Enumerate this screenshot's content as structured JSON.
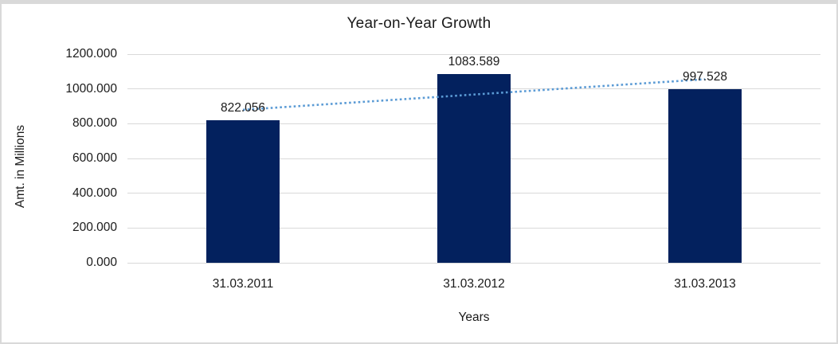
{
  "chart_data": {
    "type": "bar",
    "title": "Year-on-Year Growth",
    "xlabel": "Years",
    "ylabel": "Amt. in Millions",
    "categories": [
      "31.03.2011",
      "31.03.2012",
      "31.03.2013"
    ],
    "values": [
      822.056,
      1083.589,
      997.528
    ],
    "data_labels": [
      "822.056",
      "1083.589",
      "997.528"
    ],
    "yticks": [
      0,
      200,
      400,
      600,
      800,
      1000,
      1200
    ],
    "ytick_labels": [
      "0.000",
      "200.000",
      "400.000",
      "600.000",
      "800.000",
      "1000.000",
      "1200.000"
    ],
    "ylim": [
      0,
      1200
    ],
    "grid": true,
    "legend": false,
    "bar_color": "#03215E",
    "gridline_color": "#D9D9D9",
    "trendline": {
      "type": "linear",
      "style": "dotted",
      "color": "#5B9BD5"
    },
    "frame_color": "#D9D9D9",
    "background_color": "#FFFFFF"
  }
}
